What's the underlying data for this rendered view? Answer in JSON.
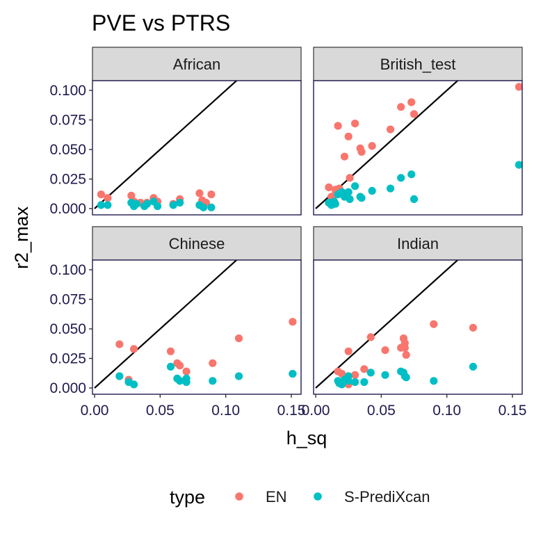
{
  "chart_data": {
    "type": "scatter",
    "title": "PVE vs PTRS",
    "xlabel": "h_sq",
    "ylabel": "r2_max",
    "xlim": [
      0.0,
      0.155
    ],
    "ylim": [
      0.0,
      0.105
    ],
    "x_ticks": [
      0.0,
      0.05,
      0.1,
      0.15
    ],
    "x_tick_labels": [
      "0.00",
      "0.05",
      "0.10",
      "0.15"
    ],
    "y_ticks": [
      0.0,
      0.025,
      0.05,
      0.075,
      0.1
    ],
    "y_tick_labels": [
      "0.000",
      "0.025",
      "0.050",
      "0.075",
      "0.100"
    ],
    "reference_line": "y = x",
    "grid": false,
    "legend": {
      "title": "type",
      "placement": "bottom",
      "entries": [
        {
          "name": "EN",
          "color": "#F8766D"
        },
        {
          "name": "S-PrediXcan",
          "color": "#00BFC4"
        }
      ]
    },
    "panels": [
      {
        "label": "African",
        "series": [
          {
            "name": "EN",
            "points": [
              [
                0.005,
                0.012
              ],
              [
                0.01,
                0.009
              ],
              [
                0.028,
                0.011
              ],
              [
                0.03,
                0.006
              ],
              [
                0.035,
                0.005
              ],
              [
                0.04,
                0.005
              ],
              [
                0.045,
                0.009
              ],
              [
                0.048,
                0.006
              ],
              [
                0.06,
                0.004
              ],
              [
                0.065,
                0.008
              ],
              [
                0.08,
                0.013
              ],
              [
                0.082,
                0.007
              ],
              [
                0.085,
                0.005
              ],
              [
                0.089,
                0.012
              ]
            ]
          },
          {
            "name": "S-PrediXcan",
            "points": [
              [
                0.005,
                0.003
              ],
              [
                0.01,
                0.003
              ],
              [
                0.028,
                0.005
              ],
              [
                0.03,
                0.002
              ],
              [
                0.032,
                0.004
              ],
              [
                0.038,
                0.002
              ],
              [
                0.04,
                0.004
              ],
              [
                0.045,
                0.006
              ],
              [
                0.048,
                0.002
              ],
              [
                0.06,
                0.003
              ],
              [
                0.065,
                0.005
              ],
              [
                0.08,
                0.003
              ],
              [
                0.083,
                0.001
              ],
              [
                0.089,
                0.001
              ]
            ]
          }
        ]
      },
      {
        "label": "British_test",
        "series": [
          {
            "name": "EN",
            "points": [
              [
                0.01,
                0.018
              ],
              [
                0.012,
                0.01
              ],
              [
                0.014,
                0.011
              ],
              [
                0.015,
                0.016
              ],
              [
                0.017,
                0.07
              ],
              [
                0.018,
                0.017
              ],
              [
                0.022,
                0.044
              ],
              [
                0.025,
                0.061
              ],
              [
                0.026,
                0.026
              ],
              [
                0.03,
                0.072
              ],
              [
                0.034,
                0.051
              ],
              [
                0.035,
                0.048
              ],
              [
                0.043,
                0.053
              ],
              [
                0.057,
                0.067
              ],
              [
                0.065,
                0.086
              ],
              [
                0.073,
                0.09
              ],
              [
                0.075,
                0.08
              ],
              [
                0.155,
                0.103
              ]
            ]
          },
          {
            "name": "S-PrediXcan",
            "points": [
              [
                0.01,
                0.005
              ],
              [
                0.012,
                0.003
              ],
              [
                0.014,
                0.006
              ],
              [
                0.015,
                0.004
              ],
              [
                0.017,
                0.012
              ],
              [
                0.02,
                0.014
              ],
              [
                0.022,
                0.01
              ],
              [
                0.025,
                0.014
              ],
              [
                0.026,
                0.008
              ],
              [
                0.03,
                0.019
              ],
              [
                0.034,
                0.01
              ],
              [
                0.035,
                0.009
              ],
              [
                0.043,
                0.015
              ],
              [
                0.057,
                0.017
              ],
              [
                0.065,
                0.026
              ],
              [
                0.073,
                0.029
              ],
              [
                0.075,
                0.008
              ],
              [
                0.155,
                0.037
              ]
            ]
          }
        ]
      },
      {
        "label": "Chinese",
        "series": [
          {
            "name": "EN",
            "points": [
              [
                0.019,
                0.037
              ],
              [
                0.026,
                0.007
              ],
              [
                0.03,
                0.033
              ],
              [
                0.058,
                0.031
              ],
              [
                0.063,
                0.021
              ],
              [
                0.065,
                0.019
              ],
              [
                0.07,
                0.014
              ],
              [
                0.09,
                0.021
              ],
              [
                0.11,
                0.042
              ],
              [
                0.151,
                0.056
              ],
              [
                0.151,
                0.012
              ]
            ]
          },
          {
            "name": "S-PrediXcan",
            "points": [
              [
                0.019,
                0.01
              ],
              [
                0.026,
                0.005
              ],
              [
                0.03,
                0.003
              ],
              [
                0.058,
                0.018
              ],
              [
                0.063,
                0.008
              ],
              [
                0.065,
                0.006
              ],
              [
                0.07,
                0.005
              ],
              [
                0.07,
                0.008
              ],
              [
                0.09,
                0.006
              ],
              [
                0.11,
                0.01
              ],
              [
                0.151,
                0.012
              ]
            ]
          }
        ]
      },
      {
        "label": "Indian",
        "series": [
          {
            "name": "EN",
            "points": [
              [
                0.017,
                0.014
              ],
              [
                0.018,
                0.005
              ],
              [
                0.02,
                0.012
              ],
              [
                0.025,
                0.031
              ],
              [
                0.025,
                0.003
              ],
              [
                0.03,
                0.011
              ],
              [
                0.037,
                0.016
              ],
              [
                0.042,
                0.043
              ],
              [
                0.053,
                0.032
              ],
              [
                0.065,
                0.034
              ],
              [
                0.067,
                0.042
              ],
              [
                0.068,
                0.038
              ],
              [
                0.068,
                0.034
              ],
              [
                0.069,
                0.028
              ],
              [
                0.09,
                0.054
              ],
              [
                0.12,
                0.051
              ]
            ]
          },
          {
            "name": "S-PrediXcan",
            "points": [
              [
                0.017,
                0.006
              ],
              [
                0.018,
                0.004
              ],
              [
                0.02,
                0.003
              ],
              [
                0.022,
                0.007
              ],
              [
                0.025,
                0.006
              ],
              [
                0.025,
                0.01
              ],
              [
                0.03,
                0.005
              ],
              [
                0.037,
                0.005
              ],
              [
                0.042,
                0.013
              ],
              [
                0.053,
                0.011
              ],
              [
                0.065,
                0.014
              ],
              [
                0.067,
                0.013
              ],
              [
                0.068,
                0.01
              ],
              [
                0.069,
                0.009
              ],
              [
                0.09,
                0.006
              ],
              [
                0.12,
                0.018
              ]
            ]
          }
        ]
      }
    ]
  }
}
